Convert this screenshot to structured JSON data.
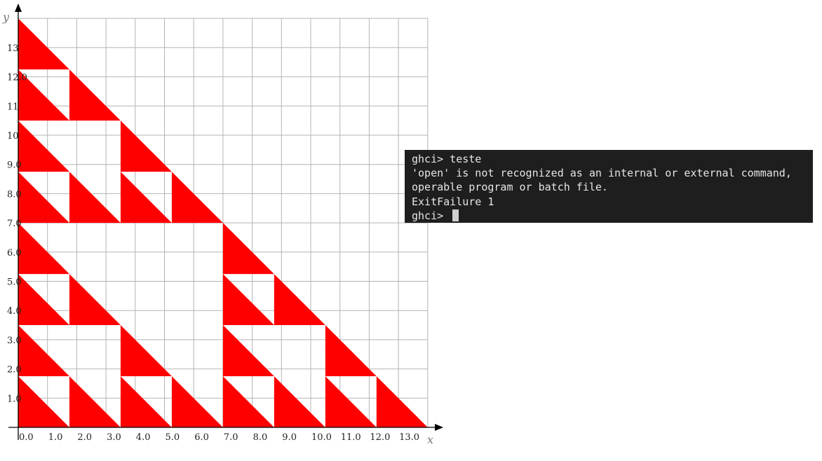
{
  "chart_data": {
    "type": "fractal-plot",
    "xlabel": "x",
    "ylabel": "y",
    "xlim": [
      0,
      14
    ],
    "ylim": [
      0,
      14
    ],
    "grid": true,
    "fill_color": "#ff0000",
    "x_ticks": [
      "0.0",
      "1.0",
      "2.0",
      "3.0",
      "4.0",
      "5.0",
      "6.0",
      "7.0",
      "8.0",
      "9.0",
      "10.0",
      "11.0",
      "12.0",
      "13.0"
    ],
    "y_ticks": [
      "1.0",
      "2.0",
      "3.0",
      "4.0",
      "5.0",
      "6.0",
      "7.0",
      "8.0",
      "9.0",
      "10",
      "11",
      "12.0",
      "13"
    ],
    "pattern_depth": 3
  },
  "terminal": {
    "lines": [
      "ghci> teste",
      "'open' is not recognized as an internal or external command,",
      "operable program or batch file.",
      "ExitFailure 1",
      "ghci> "
    ]
  }
}
